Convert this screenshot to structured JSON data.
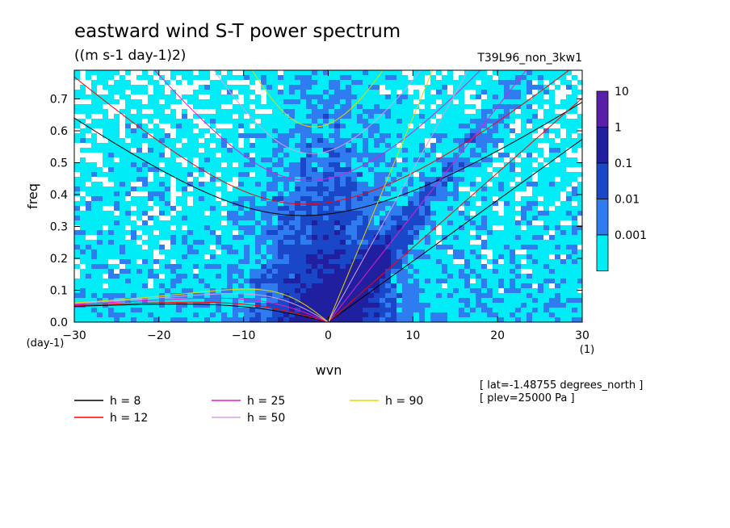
{
  "chart_data": {
    "type": "heatmap",
    "title": "eastward wind S-T power spectrum",
    "subtitle": "((m s-1 day-1)2)",
    "run_label": "T39L96_non_3kw1",
    "xlabel": "wvn",
    "ylabel": "freq",
    "x_unit_label": "(1)",
    "y_unit_label": "(day-1)",
    "xlim": [
      -30,
      30
    ],
    "ylim": [
      0,
      0.79
    ],
    "x_ticks": [
      -30,
      -20,
      -10,
      0,
      10,
      20,
      30
    ],
    "y_ticks": [
      0.0,
      0.1,
      0.2,
      0.3,
      0.4,
      0.5,
      0.6,
      0.7
    ],
    "colorbar": {
      "labels": [
        "10",
        "1",
        "0.1",
        "0.01",
        "0.001"
      ],
      "colors": [
        "#5a1fa8",
        "#1f1fa0",
        "#1a47c8",
        "#2e7cf0",
        "#00ecf6"
      ]
    },
    "colors": {
      "background_low": "#ffffff",
      "level1": "#00ecf6",
      "level2": "#2e7cf0",
      "level3": "#1a47c8",
      "level4": "#1f1fa0"
    },
    "series": [
      {
        "name": "h = 8",
        "equivalent_depth": 8,
        "color": "#000000"
      },
      {
        "name": "h = 12",
        "equivalent_depth": 12,
        "color": "#ff0000"
      },
      {
        "name": "h = 25",
        "equivalent_depth": 25,
        "color": "#e61ad0"
      },
      {
        "name": "h = 50",
        "equivalent_depth": 50,
        "color": "#d7a0e8"
      },
      {
        "name": "h = 90",
        "equivalent_depth": 90,
        "color": "#e6d800"
      }
    ],
    "annotations": [
      "[ lat=-1.48755 degrees_north ]",
      "[ plev=25000 Pa ]"
    ]
  }
}
